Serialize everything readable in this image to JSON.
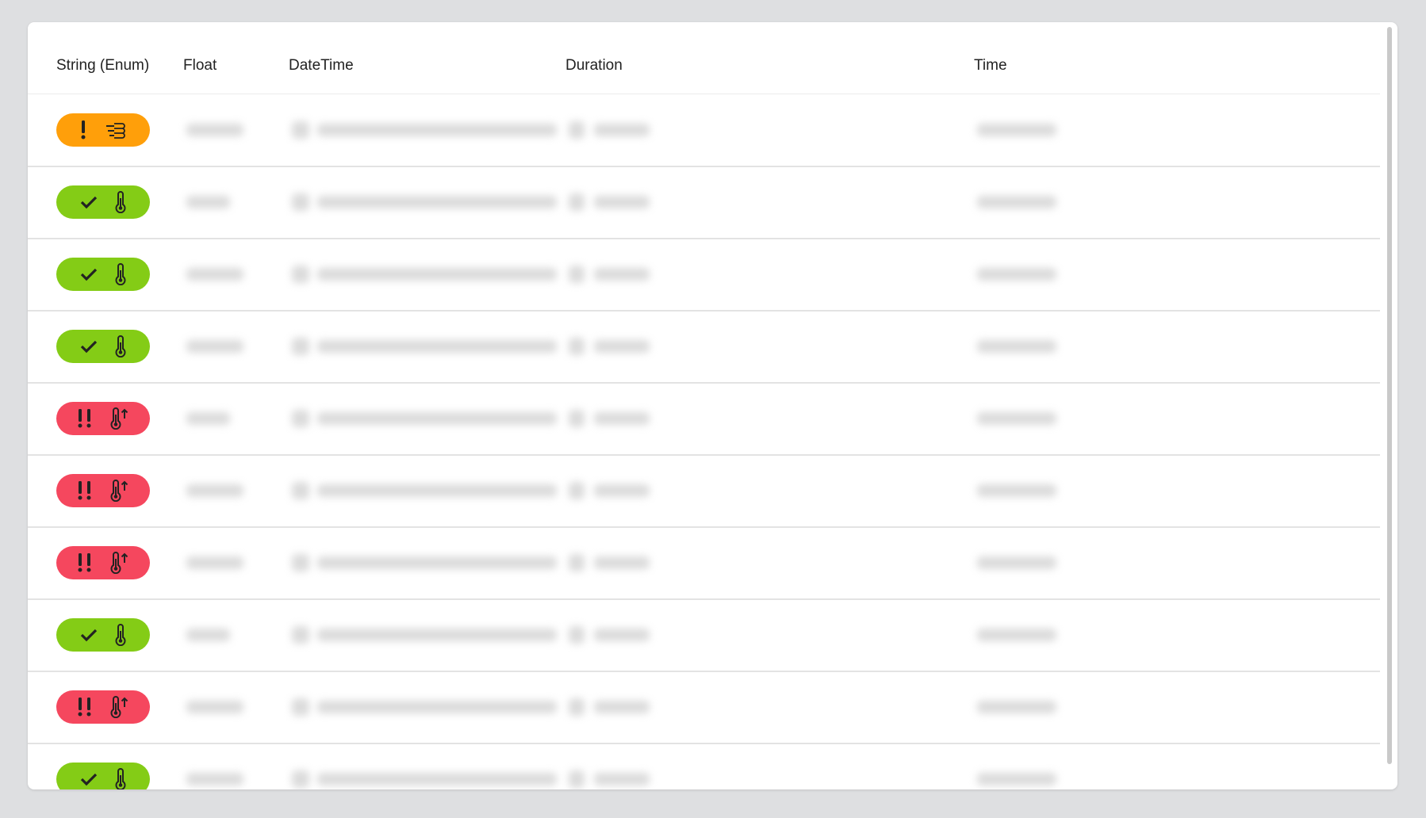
{
  "table": {
    "columns": [
      "String (Enum)",
      "Float",
      "DateTime",
      "Duration",
      "Time"
    ],
    "rows": [
      {
        "status": "warning",
        "sensor": "heat-wind"
      },
      {
        "status": "ok",
        "sensor": "thermometer"
      },
      {
        "status": "ok",
        "sensor": "thermometer"
      },
      {
        "status": "ok",
        "sensor": "thermometer"
      },
      {
        "status": "critical",
        "sensor": "thermometer-up"
      },
      {
        "status": "critical",
        "sensor": "thermometer-up"
      },
      {
        "status": "critical",
        "sensor": "thermometer-up"
      },
      {
        "status": "ok",
        "sensor": "thermometer"
      },
      {
        "status": "critical",
        "sensor": "thermometer-up"
      },
      {
        "status": "ok",
        "sensor": "thermometer"
      }
    ]
  },
  "colors": {
    "warning": "#ff9f0a",
    "ok": "#84cc16",
    "critical": "#f5475e",
    "icon": "#222222"
  }
}
